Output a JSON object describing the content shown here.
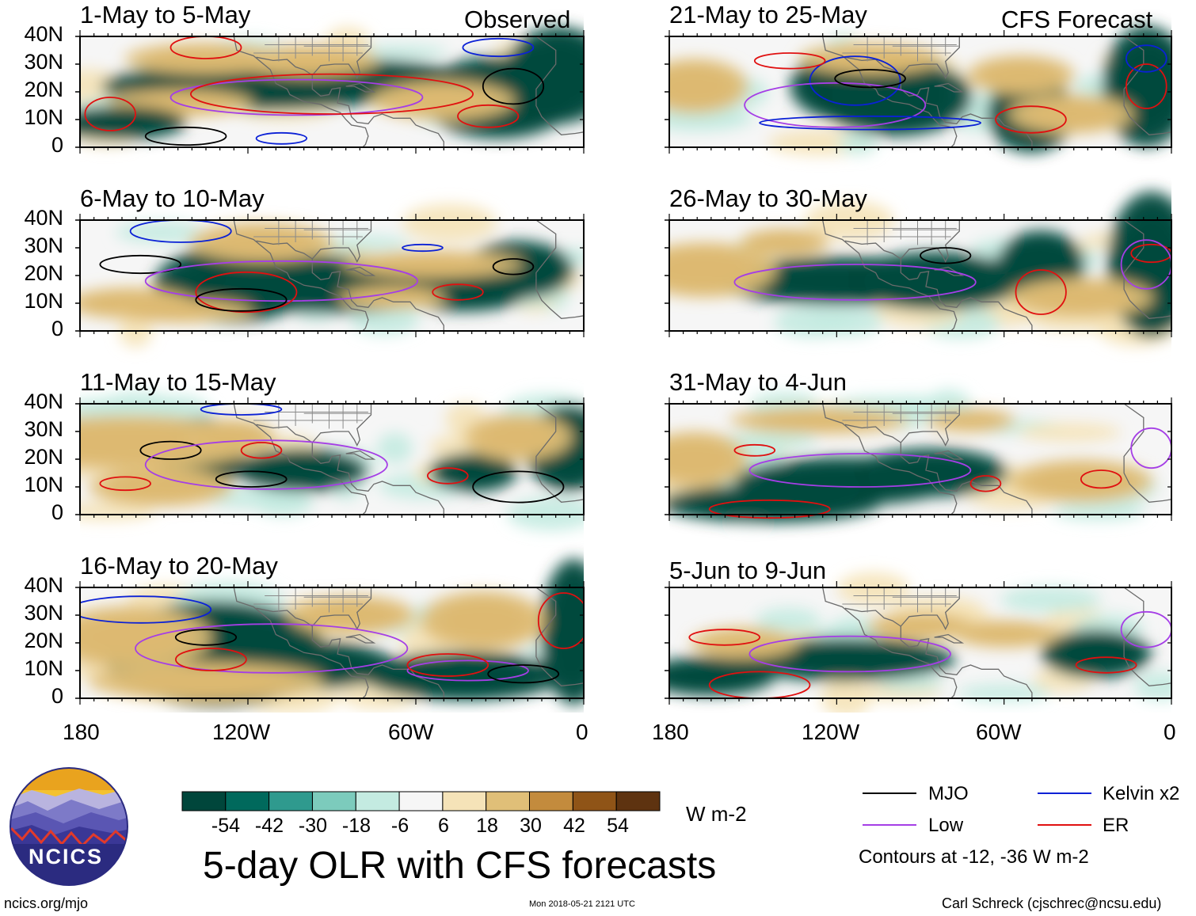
{
  "title": "5-day OLR with CFS forecasts",
  "source_url": "ncics.org/mjo",
  "timestamp": "Mon 2018-05-21 2121 UTC",
  "credit": "Carl Schreck (cjschrec@ncsu.edu)",
  "logo_text": "NCICS",
  "column_tags": {
    "left": "Observed",
    "right": "CFS Forecast"
  },
  "y_ticks": [
    "40N",
    "30N",
    "20N",
    "10N",
    "0"
  ],
  "x_ticks": [
    "180",
    "120W",
    "60W",
    "0"
  ],
  "panels": {
    "observed": [
      {
        "label": "1-May to 5-May"
      },
      {
        "label": "6-May to 10-May"
      },
      {
        "label": "11-May to 15-May"
      },
      {
        "label": "16-May to 20-May"
      }
    ],
    "forecast": [
      {
        "label": "21-May to 25-May"
      },
      {
        "label": "26-May to 30-May"
      },
      {
        "label": "31-May to 4-Jun"
      },
      {
        "label": "5-Jun to 9-Jun"
      }
    ]
  },
  "colorbar": {
    "unit": "W m-2",
    "labels": [
      "-54",
      "-42",
      "-30",
      "-18",
      "-6",
      "6",
      "18",
      "30",
      "42",
      "54"
    ],
    "colors": [
      "#00463b",
      "#00695c",
      "#2f9a8e",
      "#7ccbbc",
      "#c4ebe1",
      "#f6f6f6",
      "#f5e3b8",
      "#e0bf78",
      "#c38b3d",
      "#8f5417",
      "#5e3310"
    ]
  },
  "legend": {
    "items": [
      {
        "label": "MJO",
        "color": "#000000"
      },
      {
        "label": "Kelvin x2",
        "color": "#0b21d6"
      },
      {
        "label": "Low",
        "color": "#a53ee6"
      },
      {
        "label": "ER",
        "color": "#e01010"
      }
    ],
    "note": "Contours at -12, -36 W m-2"
  },
  "chart_data": {
    "type": "heatmap",
    "title": "5-day OLR with CFS forecasts",
    "variable": "OLR anomaly",
    "units": "W m-2",
    "lon_range": [
      -180,
      0
    ],
    "lat_range": [
      0,
      40
    ],
    "contour_levels": [
      -12,
      -36
    ]
  }
}
